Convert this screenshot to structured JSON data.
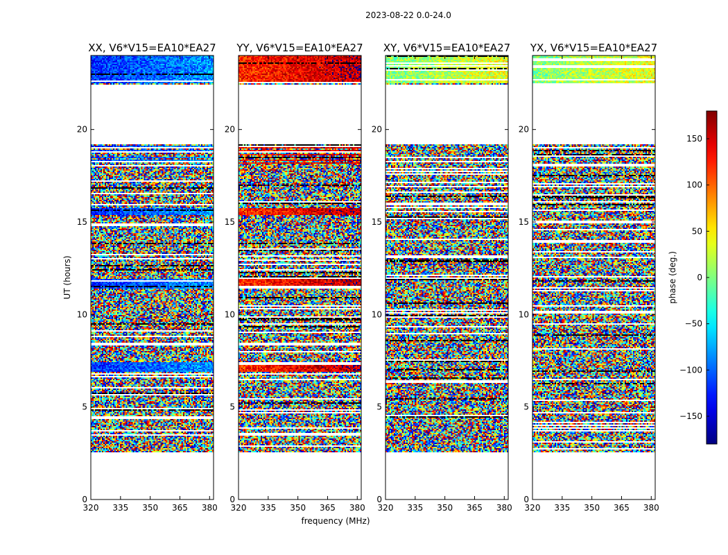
{
  "figure": {
    "title": "2023-08-22 0.0-24.0"
  },
  "chart_data": {
    "type": "heatmap",
    "title": "2023-08-22 0.0-24.0",
    "xlabel": "frequency (MHz)",
    "ylabel": "UT (hours)",
    "xlim": [
      320,
      382
    ],
    "ylim": [
      0,
      24
    ],
    "xticks": [
      "320",
      "335",
      "350",
      "365",
      "380"
    ],
    "yticks": [
      "0",
      "5",
      "10",
      "15",
      "20"
    ],
    "panels": [
      {
        "title": "XX, V6*V15=EA10*EA27",
        "polarization": "XX",
        "coherent_phase_deg": -120
      },
      {
        "title": "YY, V6*V15=EA10*EA27",
        "polarization": "YY",
        "coherent_phase_deg": 120
      },
      {
        "title": "XY, V6*V15=EA10*EA27",
        "polarization": "XY",
        "coherent_phase_deg": 0
      },
      {
        "title": "YX, V6*V15=EA10*EA27",
        "polarization": "YX",
        "coherent_phase_deg": 0
      }
    ],
    "data_time_ranges_hours": [
      [
        2.6,
        19.2
      ],
      [
        22.5,
        24.0
      ]
    ],
    "colorbar": {
      "label": "phase (deg.)",
      "range": [
        -180,
        180
      ],
      "ticks": [
        "150",
        "100",
        "50",
        "0",
        "−50",
        "−100",
        "−150"
      ],
      "tick_values": [
        150,
        100,
        50,
        0,
        -50,
        -100,
        -150
      ],
      "colormap": "jet"
    }
  }
}
